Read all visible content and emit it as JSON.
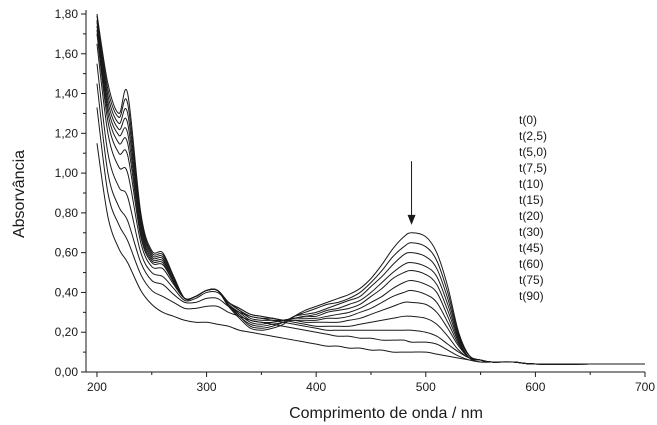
{
  "chart_data": {
    "type": "line",
    "title": "",
    "xlabel": "Comprimento de onda / nm",
    "ylabel": "Absorvância",
    "xlim": [
      190,
      700
    ],
    "ylim": [
      0,
      1.82
    ],
    "x_ticks": [
      200,
      300,
      400,
      500,
      600,
      700
    ],
    "x_tick_labels": [
      "200",
      "300",
      "400",
      "500",
      "600",
      "700"
    ],
    "y_ticks": [
      0,
      0.2,
      0.4,
      0.6,
      0.8,
      1.0,
      1.2,
      1.4,
      1.6,
      1.8
    ],
    "y_tick_labels": [
      "0,00",
      "0,20",
      "0,40",
      "0,60",
      "0,80",
      "1,00",
      "1,20",
      "1,40",
      "1,60",
      "1,80"
    ],
    "grid": false,
    "legend_position": "right",
    "line_color": "#1a1a1a",
    "x": [
      200,
      210,
      220,
      228,
      240,
      250,
      260,
      270,
      280,
      290,
      300,
      310,
      320,
      330,
      340,
      350,
      360,
      370,
      380,
      390,
      400,
      410,
      420,
      430,
      440,
      450,
      460,
      470,
      480,
      487,
      500,
      510,
      520,
      530,
      540,
      550,
      560,
      580,
      600,
      650,
      700
    ],
    "series": [
      {
        "name": "t(0)",
        "values": [
          1.8,
          1.45,
          1.3,
          1.4,
          0.8,
          0.61,
          0.6,
          0.48,
          0.37,
          0.38,
          0.41,
          0.41,
          0.33,
          0.27,
          0.22,
          0.21,
          0.22,
          0.24,
          0.28,
          0.31,
          0.33,
          0.35,
          0.37,
          0.39,
          0.42,
          0.47,
          0.54,
          0.62,
          0.68,
          0.7,
          0.68,
          0.6,
          0.43,
          0.2,
          0.08,
          0.06,
          0.05,
          0.05,
          0.04,
          0.04,
          0.04
        ]
      },
      {
        "name": "t(2,5)",
        "values": [
          1.79,
          1.42,
          1.28,
          1.35,
          0.78,
          0.6,
          0.59,
          0.48,
          0.37,
          0.38,
          0.41,
          0.41,
          0.33,
          0.28,
          0.23,
          0.22,
          0.23,
          0.25,
          0.28,
          0.3,
          0.32,
          0.34,
          0.35,
          0.37,
          0.4,
          0.45,
          0.51,
          0.58,
          0.63,
          0.65,
          0.63,
          0.56,
          0.4,
          0.19,
          0.08,
          0.06,
          0.05,
          0.05,
          0.04,
          0.04,
          0.04
        ]
      },
      {
        "name": "t(5,0)",
        "values": [
          1.77,
          1.39,
          1.25,
          1.3,
          0.76,
          0.59,
          0.58,
          0.47,
          0.37,
          0.38,
          0.41,
          0.41,
          0.34,
          0.28,
          0.24,
          0.23,
          0.24,
          0.25,
          0.28,
          0.29,
          0.3,
          0.32,
          0.34,
          0.36,
          0.38,
          0.43,
          0.48,
          0.54,
          0.59,
          0.6,
          0.58,
          0.52,
          0.37,
          0.18,
          0.08,
          0.06,
          0.05,
          0.05,
          0.04,
          0.04,
          0.04
        ]
      },
      {
        "name": "t(7,5)",
        "values": [
          1.76,
          1.36,
          1.22,
          1.25,
          0.74,
          0.58,
          0.57,
          0.46,
          0.37,
          0.38,
          0.41,
          0.41,
          0.34,
          0.29,
          0.25,
          0.24,
          0.25,
          0.26,
          0.27,
          0.28,
          0.29,
          0.31,
          0.32,
          0.34,
          0.36,
          0.4,
          0.45,
          0.5,
          0.54,
          0.55,
          0.53,
          0.48,
          0.34,
          0.17,
          0.08,
          0.06,
          0.05,
          0.05,
          0.04,
          0.04,
          0.04
        ]
      },
      {
        "name": "t(10)",
        "values": [
          1.74,
          1.33,
          1.19,
          1.2,
          0.72,
          0.57,
          0.56,
          0.46,
          0.37,
          0.38,
          0.41,
          0.41,
          0.34,
          0.3,
          0.26,
          0.25,
          0.25,
          0.26,
          0.27,
          0.28,
          0.28,
          0.3,
          0.31,
          0.32,
          0.34,
          0.38,
          0.42,
          0.47,
          0.5,
          0.51,
          0.49,
          0.44,
          0.31,
          0.16,
          0.07,
          0.06,
          0.05,
          0.05,
          0.04,
          0.04,
          0.04
        ]
      },
      {
        "name": "t(15)",
        "values": [
          1.72,
          1.3,
          1.15,
          1.15,
          0.7,
          0.56,
          0.55,
          0.45,
          0.37,
          0.38,
          0.41,
          0.41,
          0.35,
          0.31,
          0.27,
          0.26,
          0.26,
          0.26,
          0.27,
          0.27,
          0.27,
          0.28,
          0.29,
          0.3,
          0.32,
          0.35,
          0.38,
          0.42,
          0.45,
          0.46,
          0.44,
          0.4,
          0.28,
          0.15,
          0.07,
          0.06,
          0.05,
          0.05,
          0.04,
          0.04,
          0.04
        ]
      },
      {
        "name": "t(20)",
        "values": [
          1.7,
          1.26,
          1.1,
          1.09,
          0.68,
          0.55,
          0.54,
          0.45,
          0.37,
          0.38,
          0.41,
          0.41,
          0.35,
          0.31,
          0.28,
          0.27,
          0.27,
          0.26,
          0.26,
          0.26,
          0.26,
          0.27,
          0.27,
          0.28,
          0.3,
          0.32,
          0.35,
          0.38,
          0.4,
          0.41,
          0.39,
          0.35,
          0.25,
          0.14,
          0.07,
          0.06,
          0.05,
          0.05,
          0.04,
          0.04,
          0.04
        ]
      },
      {
        "name": "t(30)",
        "values": [
          1.65,
          1.2,
          1.03,
          1.0,
          0.65,
          0.53,
          0.52,
          0.44,
          0.37,
          0.38,
          0.41,
          0.41,
          0.35,
          0.32,
          0.29,
          0.28,
          0.27,
          0.26,
          0.26,
          0.25,
          0.25,
          0.25,
          0.25,
          0.26,
          0.27,
          0.29,
          0.31,
          0.33,
          0.35,
          0.35,
          0.34,
          0.3,
          0.22,
          0.13,
          0.07,
          0.06,
          0.05,
          0.05,
          0.04,
          0.04,
          0.04
        ]
      },
      {
        "name": "t(45)",
        "values": [
          1.55,
          1.1,
          0.93,
          0.88,
          0.6,
          0.5,
          0.48,
          0.42,
          0.36,
          0.37,
          0.4,
          0.4,
          0.35,
          0.32,
          0.29,
          0.28,
          0.27,
          0.26,
          0.25,
          0.24,
          0.23,
          0.23,
          0.23,
          0.23,
          0.24,
          0.25,
          0.26,
          0.27,
          0.28,
          0.28,
          0.27,
          0.24,
          0.18,
          0.11,
          0.07,
          0.06,
          0.05,
          0.05,
          0.04,
          0.04,
          0.04
        ]
      },
      {
        "name": "t(60)",
        "values": [
          1.45,
          1.0,
          0.83,
          0.76,
          0.55,
          0.46,
          0.44,
          0.39,
          0.35,
          0.35,
          0.37,
          0.37,
          0.33,
          0.3,
          0.28,
          0.27,
          0.26,
          0.25,
          0.24,
          0.23,
          0.22,
          0.21,
          0.21,
          0.21,
          0.21,
          0.21,
          0.21,
          0.21,
          0.21,
          0.21,
          0.2,
          0.18,
          0.14,
          0.1,
          0.07,
          0.06,
          0.05,
          0.05,
          0.04,
          0.04,
          0.04
        ]
      },
      {
        "name": "t(75)",
        "values": [
          1.33,
          0.9,
          0.74,
          0.66,
          0.49,
          0.41,
          0.38,
          0.35,
          0.32,
          0.32,
          0.33,
          0.33,
          0.3,
          0.28,
          0.26,
          0.25,
          0.24,
          0.23,
          0.22,
          0.21,
          0.2,
          0.19,
          0.18,
          0.18,
          0.17,
          0.17,
          0.16,
          0.16,
          0.16,
          0.15,
          0.15,
          0.14,
          0.11,
          0.08,
          0.06,
          0.05,
          0.05,
          0.05,
          0.04,
          0.04,
          0.04
        ]
      },
      {
        "name": "t(90)",
        "values": [
          1.15,
          0.78,
          0.62,
          0.55,
          0.41,
          0.34,
          0.3,
          0.28,
          0.26,
          0.25,
          0.25,
          0.24,
          0.23,
          0.21,
          0.2,
          0.19,
          0.18,
          0.17,
          0.16,
          0.15,
          0.14,
          0.13,
          0.13,
          0.12,
          0.12,
          0.11,
          0.11,
          0.1,
          0.1,
          0.1,
          0.1,
          0.09,
          0.08,
          0.07,
          0.06,
          0.05,
          0.05,
          0.05,
          0.04,
          0.04,
          0.04
        ]
      }
    ],
    "annotations": [
      {
        "type": "arrow",
        "x": 487,
        "y_from": 1.06,
        "y_to": 0.74,
        "direction": "down"
      }
    ]
  }
}
